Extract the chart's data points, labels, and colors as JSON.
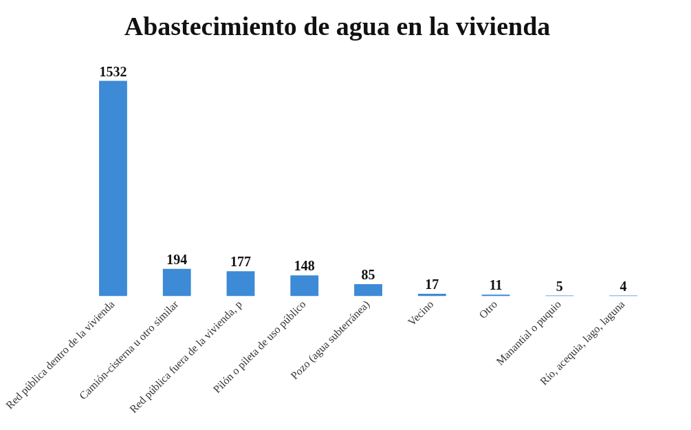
{
  "chart_data": {
    "type": "bar",
    "title": "Abastecimiento de agua en la vivienda",
    "categories": [
      "Red pública dentro de la vivienda",
      "Camión-cisterna u otro similar",
      "Red pública fuera de la vivienda, p",
      "Pilón o pileta de uso público",
      "Pozo (agua subterránea)",
      "Vecino",
      "Otro",
      "Manantial o puquio",
      "Río, acequia, lago, laguna"
    ],
    "values": [
      1532,
      194,
      177,
      148,
      85,
      17,
      11,
      5,
      4
    ],
    "color": "#3d8ad6",
    "data_labels": true,
    "grid": false,
    "legend": false
  }
}
